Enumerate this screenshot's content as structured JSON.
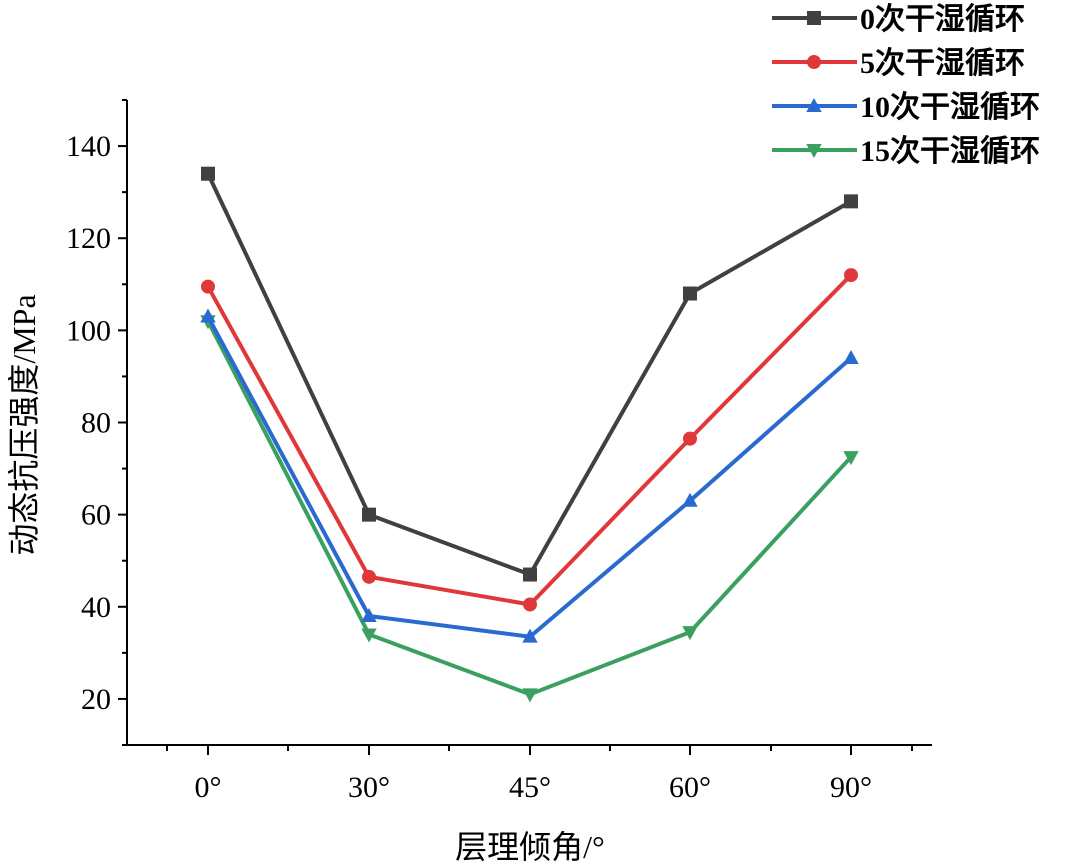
{
  "chart_data": {
    "type": "line",
    "title": "",
    "xlabel": "层理倾角/°",
    "ylabel": "动态抗压强度/MPa",
    "categories": [
      "0°",
      "30°",
      "45°",
      "60°",
      "90°"
    ],
    "ylim": [
      10,
      150
    ],
    "yticks": [
      20,
      40,
      60,
      80,
      100,
      120,
      140
    ],
    "grid": false,
    "legend_position": "top-right",
    "series": [
      {
        "name": "0次干湿循环",
        "marker": "square",
        "color": "#404040",
        "values": [
          134,
          60,
          47,
          108,
          128
        ]
      },
      {
        "name": "5次干湿循环",
        "marker": "circle",
        "color": "#e0373a",
        "values": [
          109.5,
          46.5,
          40.5,
          76.5,
          112
        ]
      },
      {
        "name": "10次干湿循环",
        "marker": "triangle-up",
        "color": "#2a6ad0",
        "values": [
          103,
          38,
          33.5,
          63,
          94
        ]
      },
      {
        "name": "15次干湿循环",
        "marker": "triangle-down",
        "color": "#3aa060",
        "values": [
          102,
          34,
          21,
          34.5,
          72.5
        ]
      }
    ]
  }
}
